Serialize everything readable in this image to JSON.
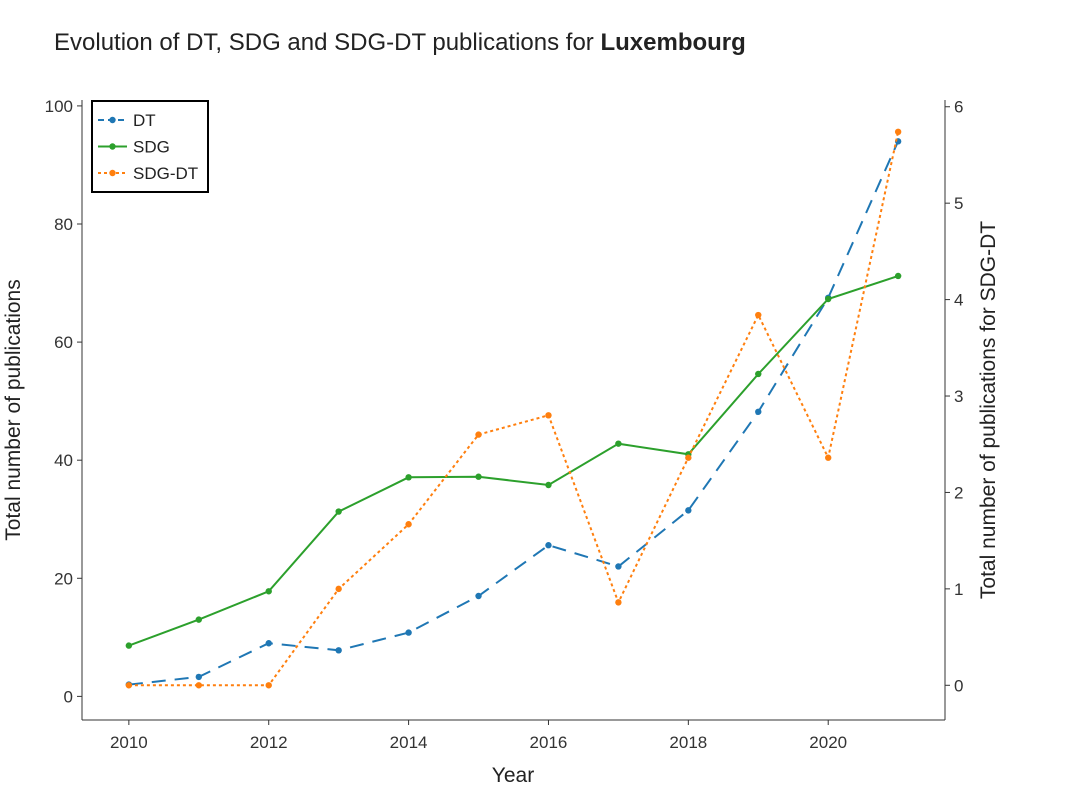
{
  "chart_data": {
    "type": "line",
    "title": "Evolution of DT, SDG and SDG-DT publications for",
    "title_bold": "Luxembourg",
    "xlabel": "Year",
    "ylabel_left": "Total number of publications",
    "ylabel_right": "Total number of publications for SDG-DT",
    "x": [
      2010,
      2011,
      2012,
      2013,
      2014,
      2015,
      2016,
      2017,
      2018,
      2019,
      2020,
      2021
    ],
    "x_ticks": [
      "2010",
      "2012",
      "2014",
      "2016",
      "2018",
      "2020"
    ],
    "x_range": [
      2009.33,
      2021.67
    ],
    "y_left_ticks": [
      "0",
      "20",
      "40",
      "60",
      "80",
      "100"
    ],
    "y_left_range": [
      -4,
      101
    ],
    "y_right_ticks": [
      "0",
      "1",
      "2",
      "3",
      "4",
      "5",
      "6"
    ],
    "y_right_range": [
      -0.36,
      6.07
    ],
    "legend_position": "top-left",
    "grid": false,
    "series": [
      {
        "name": "DT",
        "axis": "left",
        "color": "#1f77b4",
        "style": "dashed",
        "values": [
          2,
          3.3,
          9,
          7.8,
          10.8,
          17,
          25.6,
          22,
          31.5,
          48.2,
          67.5,
          94
        ]
      },
      {
        "name": "SDG",
        "axis": "left",
        "color": "#2ca02c",
        "style": "solid",
        "values": [
          8.6,
          13,
          17.8,
          31.3,
          37.1,
          37.2,
          35.8,
          42.8,
          41,
          54.6,
          67.3,
          71.2
        ]
      },
      {
        "name": "SDG-DT",
        "axis": "right",
        "color": "#ff7f0e",
        "style": "dotted",
        "values": [
          0,
          0,
          0,
          1,
          1.67,
          2.6,
          2.8,
          0.86,
          2.36,
          3.84,
          2.36,
          5.74
        ]
      }
    ]
  }
}
